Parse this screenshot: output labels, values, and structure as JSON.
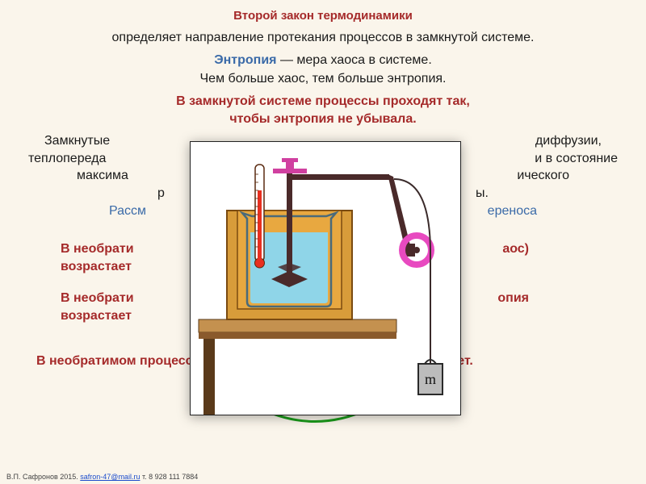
{
  "title": "Второй закон термодинамики",
  "subtitle": "определяет направление протекания процессов в замкнутой системе.",
  "entropy_term": "Энтропия",
  "entropy_def": " — мера хаоса в системе.",
  "chaos_line": "Чем больше хаос, тем больше энтропия.",
  "red1_l1": "В замкнутой системе процессы проходят так,",
  "red1_l2": "чтобы энтропия не убывала.",
  "p2_l1a": "Замкнутые",
  "p2_l1b": "диффузии,",
  "p2_l2a": "теплопереда",
  "p2_l2b": "и в состояние",
  "p2_l3a": "максима",
  "p2_l3b": "ического",
  "p2_l4a": "р",
  "p2_l4b": "ы.",
  "blue_a": "Рассм",
  "blue_b": "ереноса",
  "r2_l1a": "В необрати",
  "r2_l1b": "аос)",
  "r2_l2": "возрастает",
  "r3_l1a": "В необрати",
  "r3_l1b": "опия",
  "r3_l2": "возрастает",
  "final": "В необратимом процессе внутреннего трения энтропия возрастает.",
  "footer_pre": "В.П. Сафронов 2015.  ",
  "footer_mail": "safron-47@mail.ru",
  "footer_post": "  т. 8 928 111 7884",
  "diagram": {
    "bg": "#ffffff",
    "table_top": "#c4914f",
    "table_side": "#8a5a2c",
    "table_leg": "#5a3a1a",
    "box_outer": "#d89c3a",
    "box_inner": "#e8a840",
    "box_stroke": "#7a4a10",
    "water": "#8fd5e8",
    "beaker_stroke": "#4a6a7a",
    "thermo_body": "#ffffff",
    "thermo_fluid": "#e83020",
    "thermo_stroke": "#5a2a10",
    "rod_color": "#4a2a2a",
    "cap_color": "#d040a0",
    "pulley_color": "#e84ac0",
    "weight_body": "#bcbcbc",
    "weight_outline": "#2a2a2a",
    "weight_label": "m",
    "rope": "#3a2a2a"
  },
  "colors": {
    "arc": "#1a9a1a"
  }
}
